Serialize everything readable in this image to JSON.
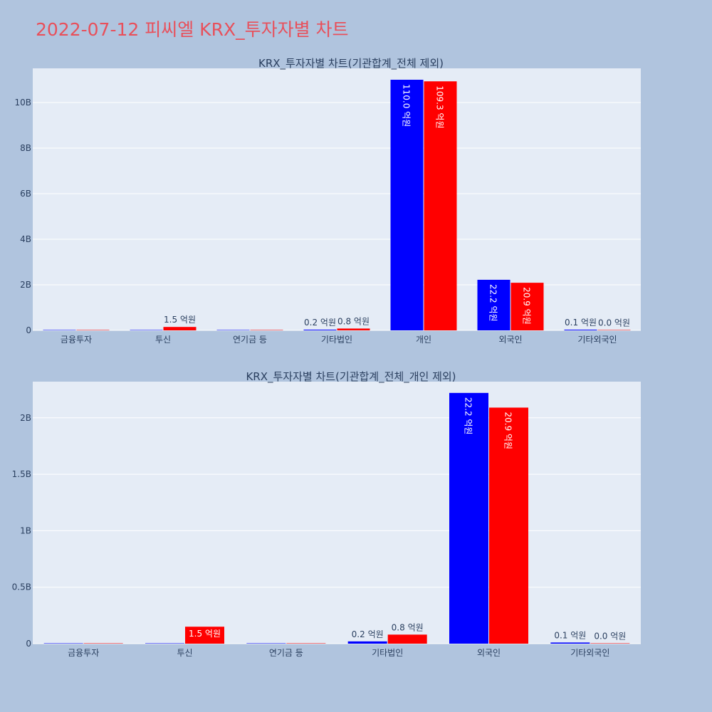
{
  "page": {
    "title": "2022-07-12 피씨엘 KRX_투자자별 차트"
  },
  "colors": {
    "background": "#b0c4de",
    "plot_bg": "#e5ecf6",
    "grid": "#ffffff",
    "series_a": "#0000ff",
    "series_b": "#ff0000",
    "title": "#e8505b"
  },
  "chart_data": [
    {
      "type": "bar",
      "title": "KRX_투자자별 차트(기관합계_전체 제외)",
      "categories": [
        "금융투자",
        "투신",
        "연기금 등",
        "기타법인",
        "개인",
        "외국인",
        "기타외국인"
      ],
      "series": [
        {
          "values": [
            0,
            0,
            0,
            20000000,
            11000000000,
            2220000000,
            10000000
          ],
          "labels": [
            "",
            "",
            "",
            "0.2 억원",
            "110.0 억원",
            "22.2 억원",
            "0.1 억원"
          ]
        },
        {
          "values": [
            0,
            150000000,
            0,
            80000000,
            10930000000,
            2090000000,
            0
          ],
          "labels": [
            "",
            "1.5 억원",
            "",
            "0.8 억원",
            "109.3 억원",
            "20.9 억원",
            "0.0 억원"
          ]
        }
      ],
      "ylim": [
        0,
        11500000000
      ],
      "yticks": [
        0,
        2000000000,
        4000000000,
        6000000000,
        8000000000,
        10000000000
      ],
      "ytick_labels": [
        "0",
        "2B",
        "4B",
        "6B",
        "8B",
        "10B"
      ],
      "grid": true,
      "xlabel": "",
      "ylabel": ""
    },
    {
      "type": "bar",
      "title": "KRX_투자자별 차트(기관합계_전체_개인 제외)",
      "categories": [
        "금융투자",
        "투신",
        "연기금 등",
        "기타법인",
        "외국인",
        "기타외국인"
      ],
      "series": [
        {
          "values": [
            0,
            0,
            0,
            20000000,
            2220000000,
            10000000
          ],
          "labels": [
            "",
            "",
            "",
            "0.2 억원",
            "22.2 억원",
            "0.1 억원"
          ]
        },
        {
          "values": [
            0,
            150000000,
            0,
            80000000,
            2090000000,
            0
          ],
          "labels": [
            "",
            "1.5 억원",
            "",
            "0.8 억원",
            "20.9 억원",
            "0.0 억원"
          ]
        }
      ],
      "ylim": [
        0,
        2320000000
      ],
      "yticks": [
        0,
        500000000,
        1000000000,
        1500000000,
        2000000000
      ],
      "ytick_labels": [
        "0",
        "0.5B",
        "1B",
        "1.5B",
        "2B"
      ],
      "grid": true,
      "xlabel": "",
      "ylabel": ""
    }
  ]
}
